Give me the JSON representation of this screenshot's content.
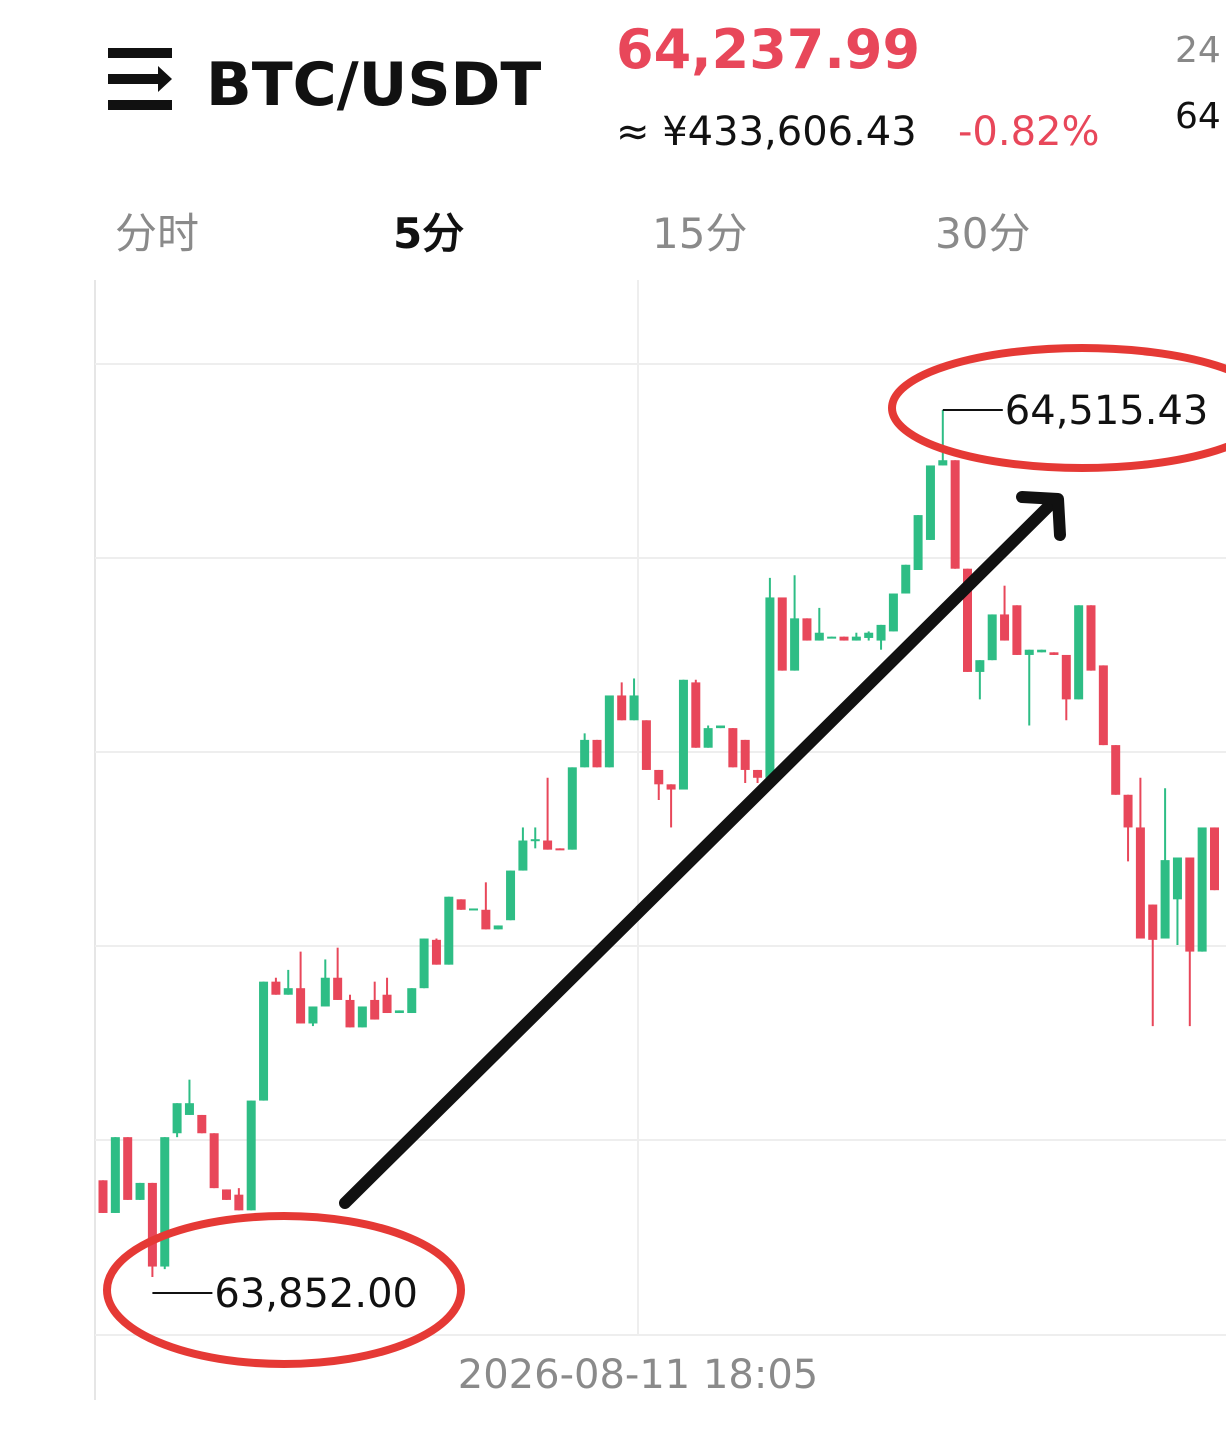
{
  "header": {
    "symbol": "BTC/USDT",
    "price": "64,237.99",
    "cny_price": "≈ ¥433,606.43",
    "change": "-0.82%",
    "side_top": "24",
    "side_bottom": "64"
  },
  "tabs": [
    "分时",
    "5分",
    "15分",
    "30分"
  ],
  "active_tab": 1,
  "chart_data": {
    "type": "candlestick",
    "open": [
      63926,
      63901,
      63959,
      63911,
      63924,
      63860,
      63962,
      63976,
      63976,
      63962,
      63919,
      63915,
      63903,
      63987,
      64078,
      64068,
      64073,
      64046,
      64059,
      64081,
      64064,
      64043,
      64064,
      64068,
      64054,
      64054,
      64073,
      64110,
      64091,
      64141,
      64133,
      64133,
      64118,
      64125,
      64163,
      64186,
      64186,
      64180,
      64179,
      64242,
      64263,
      64242,
      64297,
      64278,
      64278,
      64240,
      64229,
      64225,
      64307,
      64257,
      64272,
      64272,
      64263,
      64240,
      64234,
      64372,
      64316,
      64356,
      64339,
      64341,
      64342,
      64339,
      64341,
      64339,
      64346,
      64375,
      64393,
      64416,
      64473,
      64477,
      64394,
      64315,
      64324,
      64359,
      64366,
      64328,
      64330,
      64330,
      64328,
      64294,
      64366,
      64320,
      64259,
      64221,
      64196,
      64137,
      64111,
      64141,
      64173,
      64101,
      64196
    ],
    "high": [
      63926,
      63959,
      63959,
      63924,
      63924,
      63959,
      63985,
      64003,
      63976,
      63962,
      63919,
      63920,
      63987,
      64078,
      64081,
      64087,
      64101,
      64059,
      64095,
      64104,
      64068,
      64059,
      64078,
      64081,
      64056,
      64073,
      64111,
      64111,
      64143,
      64141,
      64133,
      64154,
      64121,
      64163,
      64196,
      64196,
      64234,
      64180,
      64242,
      64268,
      64263,
      64297,
      64307,
      64310,
      64278,
      64240,
      64229,
      64309,
      64309,
      64274,
      64274,
      64272,
      64263,
      64240,
      64387,
      64372,
      64389,
      64356,
      64364,
      64342,
      64342,
      64345,
      64346,
      64351,
      64375,
      64397,
      64435,
      64473,
      64515.43,
      64477,
      64394,
      64324,
      64359,
      64381,
      64366,
      64332,
      64332,
      64330,
      64328,
      64366,
      64366,
      64320,
      64259,
      64221,
      64234,
      64137,
      64226,
      64173,
      64173,
      64196,
      64196
    ],
    "low": [
      63901,
      63901,
      63911,
      63911,
      63852,
      63858,
      63959,
      63976,
      63962,
      63920,
      63911,
      63903,
      63903,
      63987,
      64068,
      64068,
      64046,
      64044,
      64059,
      64064,
      64043,
      64043,
      64049,
      64054,
      64054,
      64054,
      64073,
      64091,
      64091,
      64133,
      64133,
      64118,
      64118,
      64125,
      64163,
      64180,
      64179,
      64179,
      64179,
      64242,
      64242,
      64242,
      64278,
      64278,
      64240,
      64217,
      64196,
      64225,
      64257,
      64257,
      64272,
      64242,
      64230,
      64230,
      64234,
      64316,
      64316,
      64339,
      64339,
      64341,
      64339,
      64339,
      64339,
      64332,
      64346,
      64375,
      64393,
      64416,
      64473,
      64394,
      64315,
      64294,
      64324,
      64339,
      64328,
      64274,
      64330,
      64328,
      64278,
      64294,
      64316,
      64259,
      64221,
      64170,
      64111,
      64044,
      64111,
      64106,
      64044,
      64101,
      64148
    ],
    "close": [
      63901,
      63959,
      63911,
      63924,
      63860,
      63959,
      63985,
      63985,
      63962,
      63920,
      63911,
      63903,
      63987,
      64078,
      64068,
      64073,
      64046,
      64059,
      64081,
      64064,
      64043,
      64059,
      64049,
      64054,
      64056,
      64073,
      64111,
      64091,
      64143,
      64133,
      64134,
      64118,
      64121,
      64163,
      64186,
      64187,
      64179,
      64179,
      64242,
      64263,
      64242,
      64297,
      64278,
      64297,
      64240,
      64229,
      64225,
      64309,
      64257,
      64272,
      64274,
      64242,
      64240,
      64234,
      64372,
      64316,
      64356,
      64339,
      64345,
      64342,
      64339,
      64342,
      64345,
      64351,
      64375,
      64397,
      64435,
      64473,
      64477,
      64394,
      64315,
      64324,
      64359,
      64339,
      64328,
      64332,
      64332,
      64328,
      64294,
      64366,
      64316,
      64259,
      64221,
      64196,
      64111,
      64110,
      64171,
      64173,
      64101,
      64196,
      64148
    ],
    "up_color": "#2ebd85",
    "down_color": "#e8475a",
    "annotations": [
      {
        "value": 64515.43,
        "label": "64,515.43"
      },
      {
        "value": 63852,
        "label": "63,852.00"
      }
    ],
    "x_label": "2026-08-11 18:05"
  }
}
